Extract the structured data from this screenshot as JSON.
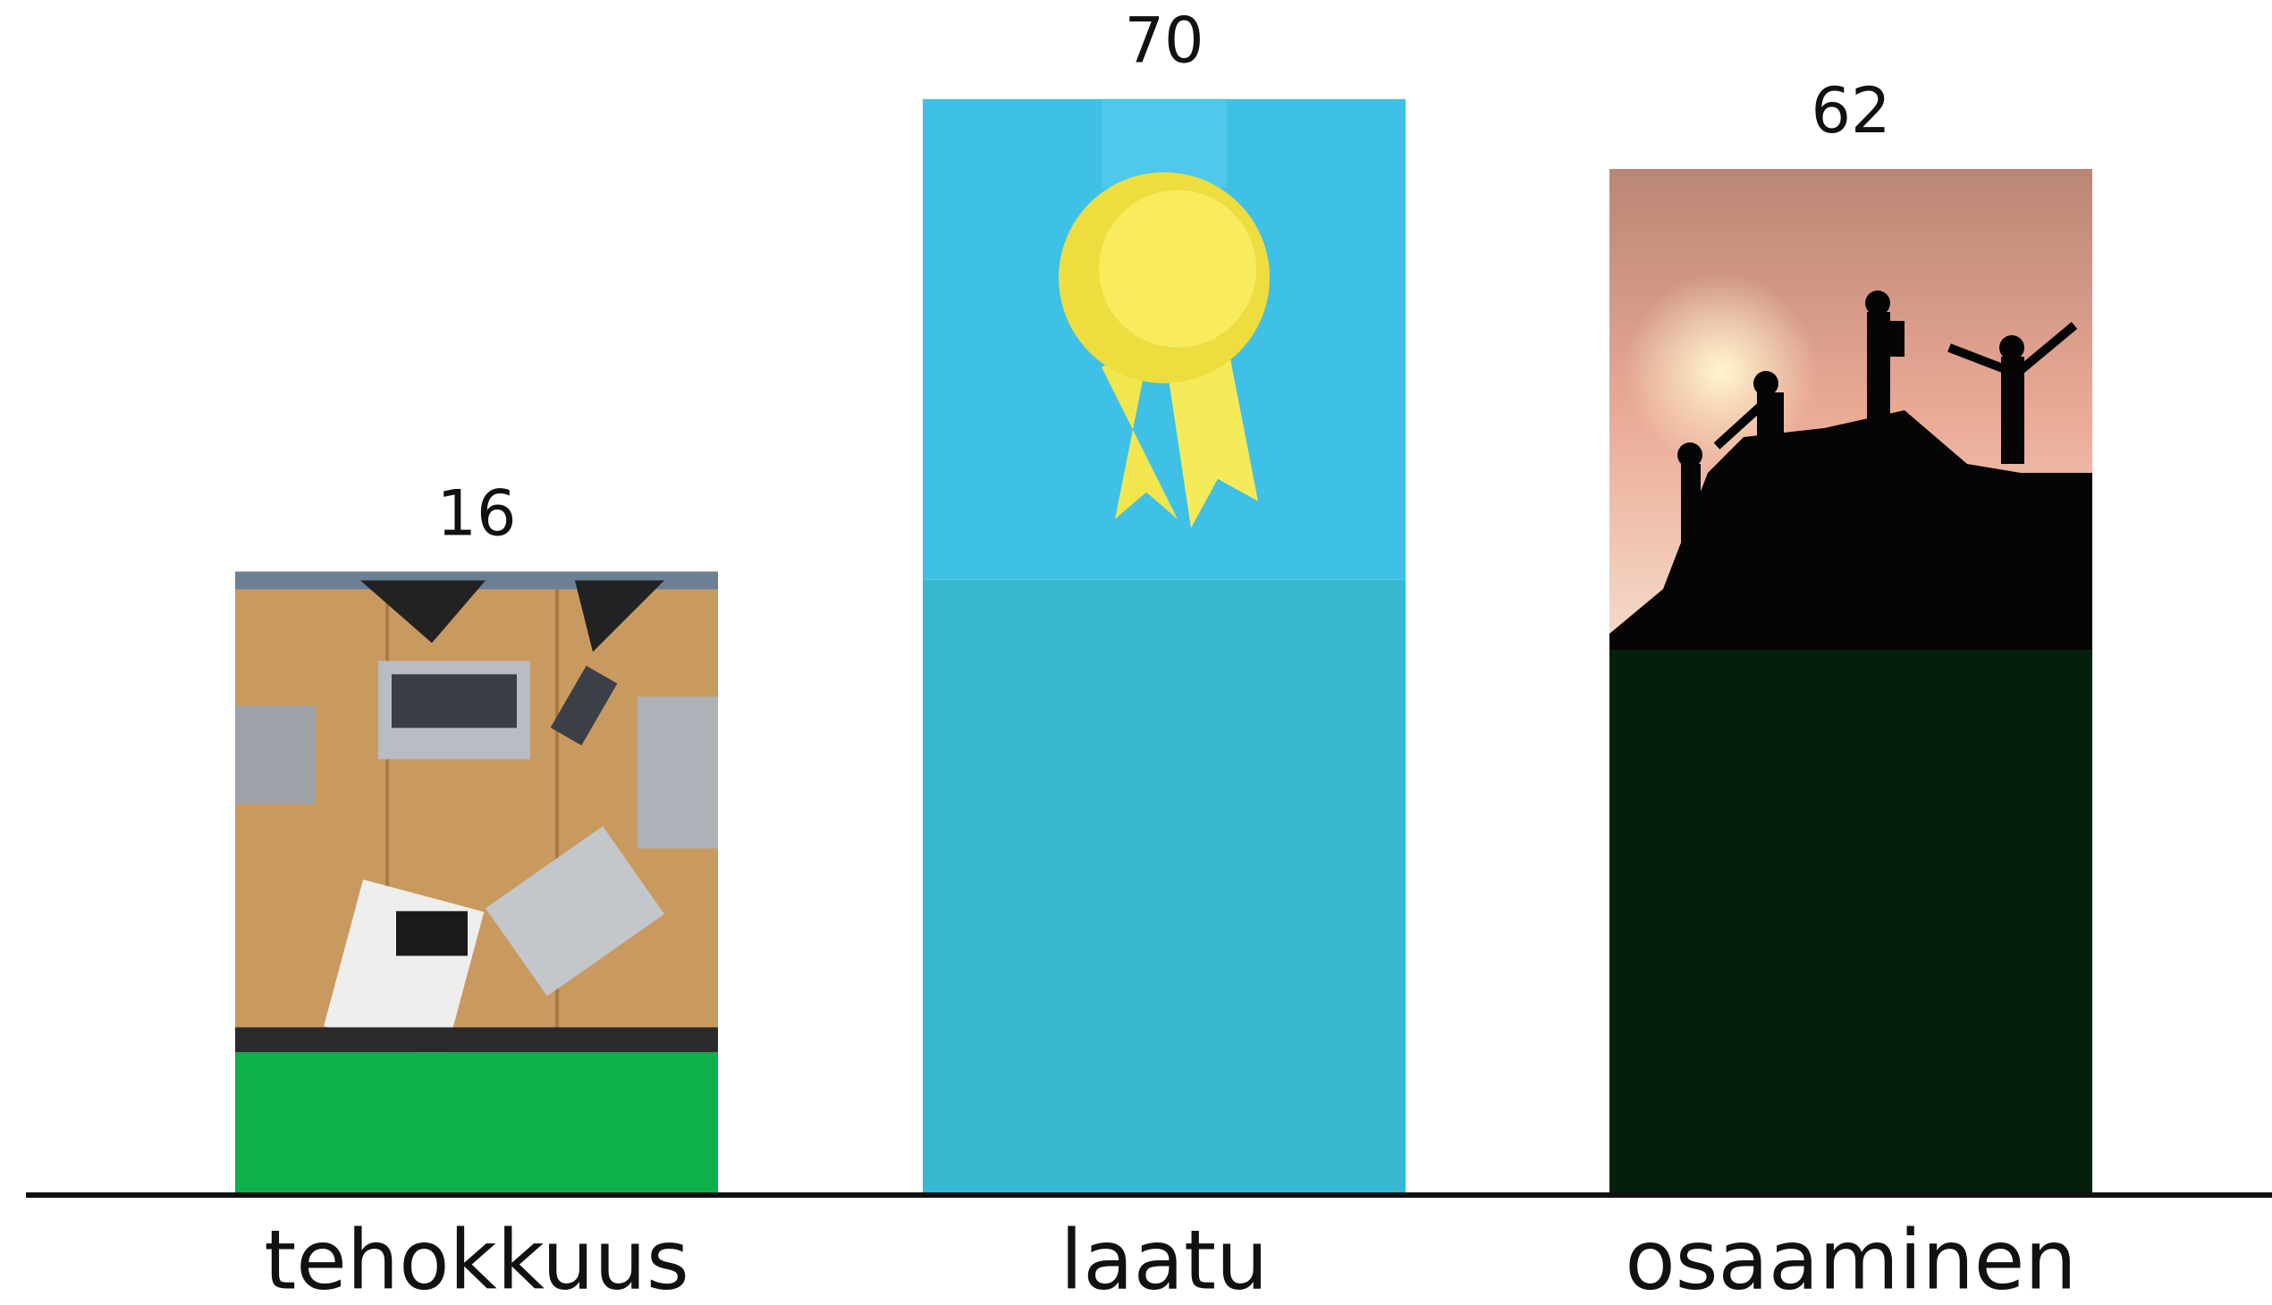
{
  "chart_data": {
    "type": "bar",
    "categories": [
      "tehokkuus",
      "laatu",
      "osaaminen"
    ],
    "values": [
      16,
      70,
      62
    ],
    "colors": [
      "#0db04b",
      "#36b9d1",
      "#03200d"
    ]
  }
}
